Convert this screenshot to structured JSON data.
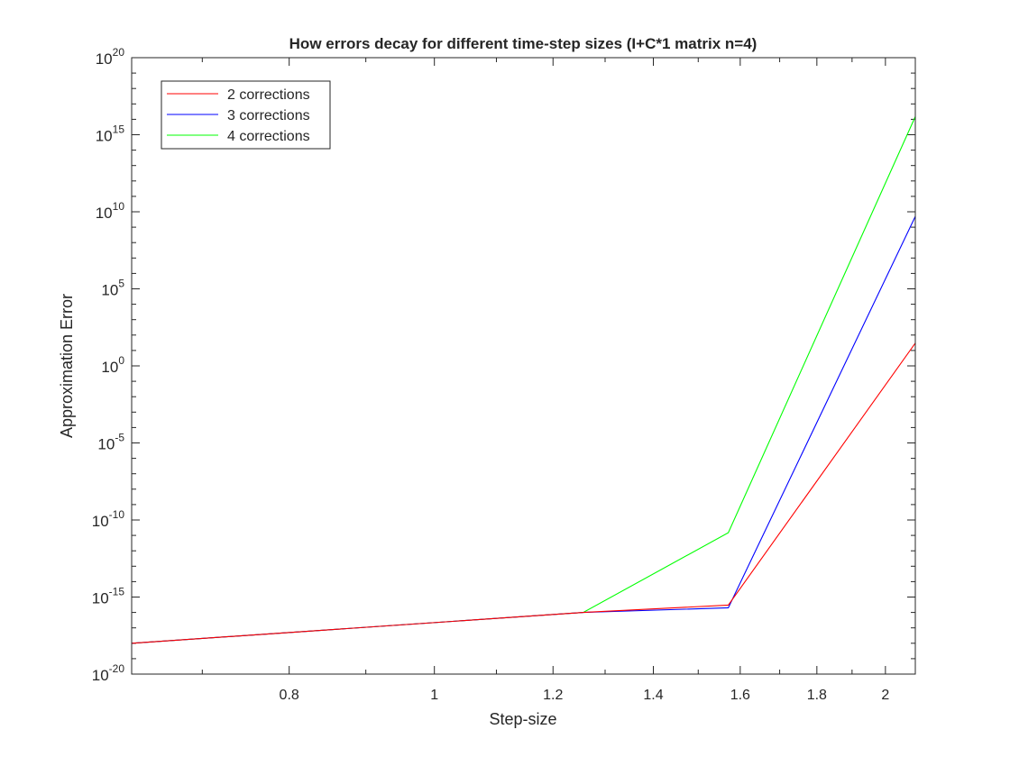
{
  "chart_data": {
    "type": "line",
    "title": "How errors decay for different time-step sizes (I+C*1 matrix n=4)",
    "xlabel": "Step-size",
    "ylabel": "Approximation Error",
    "xscale": "log",
    "yscale": "log",
    "xlim": [
      0.628,
      2.094
    ],
    "ylim_exponents": [
      -20,
      20
    ],
    "x_ticks": [
      0.8,
      1,
      1.2,
      1.4,
      1.6,
      1.8,
      2
    ],
    "x_tick_labels": [
      "0.8",
      "1",
      "1.2",
      "1.4",
      "1.6",
      "1.8",
      "2"
    ],
    "y_ticks": [
      {
        "base": "10",
        "exp": "-20"
      },
      {
        "base": "10",
        "exp": "-15"
      },
      {
        "base": "10",
        "exp": "-10"
      },
      {
        "base": "10",
        "exp": "-5"
      },
      {
        "base": "10",
        "exp": "0"
      },
      {
        "base": "10",
        "exp": "5"
      },
      {
        "base": "10",
        "exp": "10"
      },
      {
        "base": "10",
        "exp": "15"
      },
      {
        "base": "10",
        "exp": "20"
      }
    ],
    "legend_position": "top-left",
    "x": [
      0.628,
      1.257,
      1.571,
      2.094
    ],
    "series": [
      {
        "name": "2 corrections",
        "color": "#ff0000",
        "values": [
          1e-18,
          1e-16,
          3e-16,
          30.0
        ]
      },
      {
        "name": "3 corrections",
        "color": "#0000ff",
        "values": [
          1e-18,
          1e-16,
          2e-16,
          5000000000.0
        ]
      },
      {
        "name": "4 corrections",
        "color": "#00ff00",
        "values": [
          1e-18,
          1e-16,
          1.5e-11,
          1.5e+16
        ]
      }
    ]
  }
}
